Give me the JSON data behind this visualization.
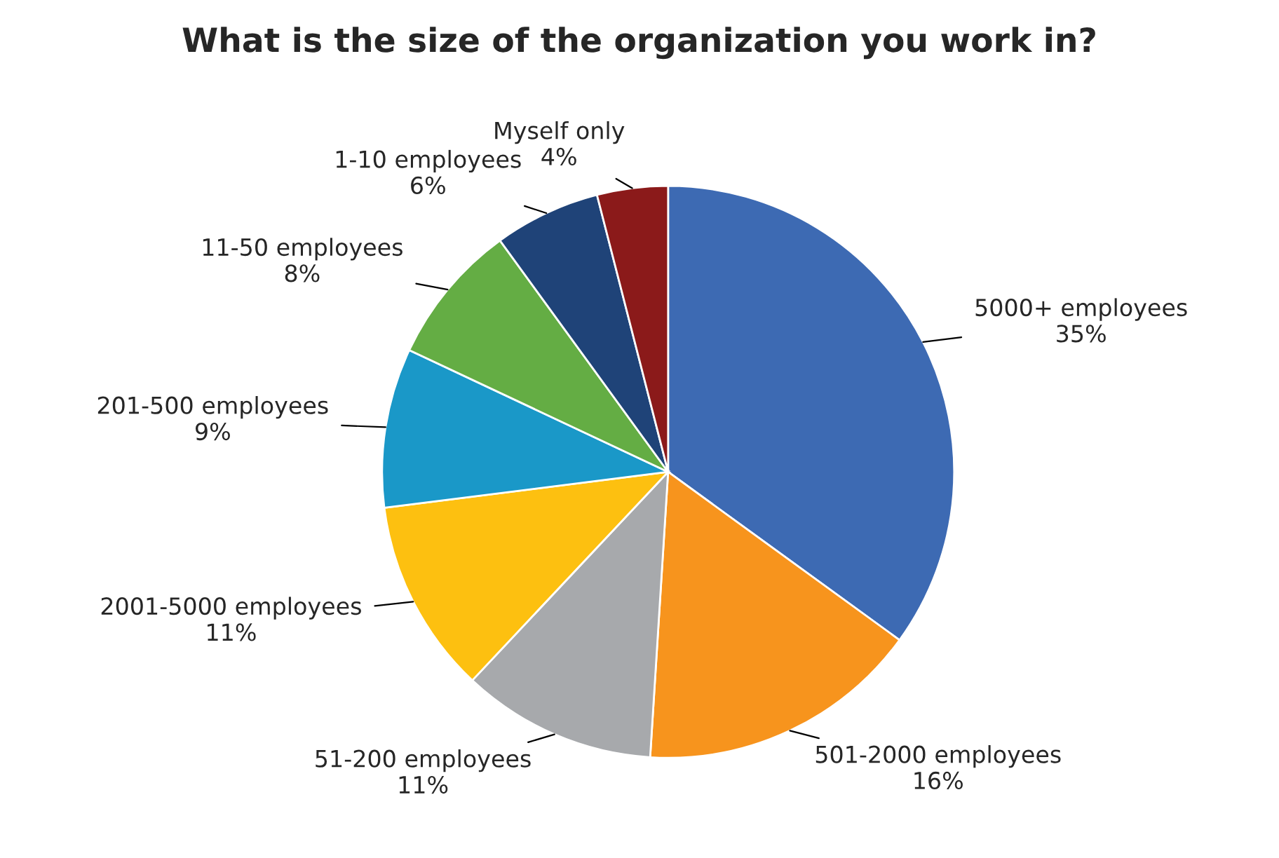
{
  "chart_data": {
    "type": "pie",
    "title": "What is the size of the organization you work in?",
    "categories": [
      "5000+ employees",
      "501-2000 employees",
      "51-200 employees",
      "2001-5000 employees",
      "201-500 employees",
      "11-50 employees",
      "1-10 employees",
      "Myself only"
    ],
    "values": [
      35,
      16,
      11,
      11,
      9,
      8,
      6,
      4
    ],
    "value_labels": [
      "35%",
      "16%",
      "11%",
      "11%",
      "9%",
      "8%",
      "6%",
      "4%"
    ],
    "colors": [
      "#3d6ab3",
      "#f7941d",
      "#a7a9ac",
      "#fdc010",
      "#1a98c8",
      "#64ad44",
      "#1f4378",
      "#8b1a1a"
    ],
    "legend": false
  }
}
